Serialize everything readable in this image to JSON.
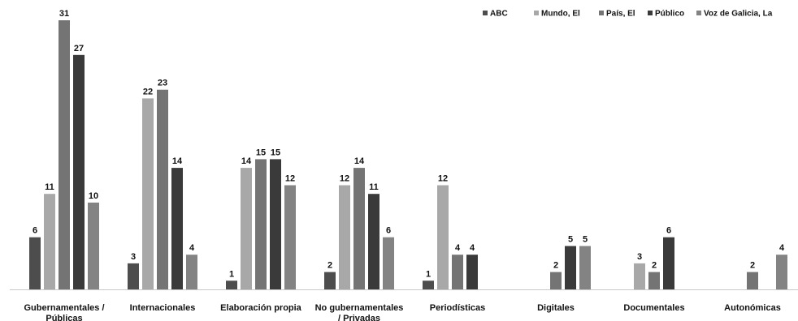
{
  "chart_data": {
    "type": "bar",
    "categories": [
      [
        "Gubernamentales /",
        "Públicas"
      ],
      [
        "Internacionales"
      ],
      [
        "Elaboración propia"
      ],
      [
        "No gubernamentales",
        "/ Privadas"
      ],
      [
        "Periodísticas"
      ],
      [
        "Digitales"
      ],
      [
        "Documentales"
      ],
      [
        "Autonómicas"
      ]
    ],
    "series": [
      {
        "name": "ABC",
        "color": "#4d4d4d",
        "values": [
          6,
          3,
          1,
          2,
          1,
          null,
          null,
          null
        ]
      },
      {
        "name": "Mundo, El",
        "color": "#a8a8a8",
        "values": [
          11,
          22,
          14,
          12,
          12,
          null,
          3,
          null
        ]
      },
      {
        "name": "País, El",
        "color": "#747474",
        "values": [
          31,
          23,
          15,
          14,
          4,
          2,
          2,
          2
        ]
      },
      {
        "name": "Público",
        "color": "#3a3a3a",
        "values": [
          27,
          14,
          15,
          11,
          4,
          5,
          6,
          null
        ]
      },
      {
        "name": "Voz de Galicia, La",
        "color": "#838383",
        "values": [
          10,
          4,
          12,
          6,
          null,
          5,
          null,
          4
        ]
      }
    ],
    "ylim": [
      0,
      31
    ],
    "legend_position": "top-right",
    "grid": false
  }
}
